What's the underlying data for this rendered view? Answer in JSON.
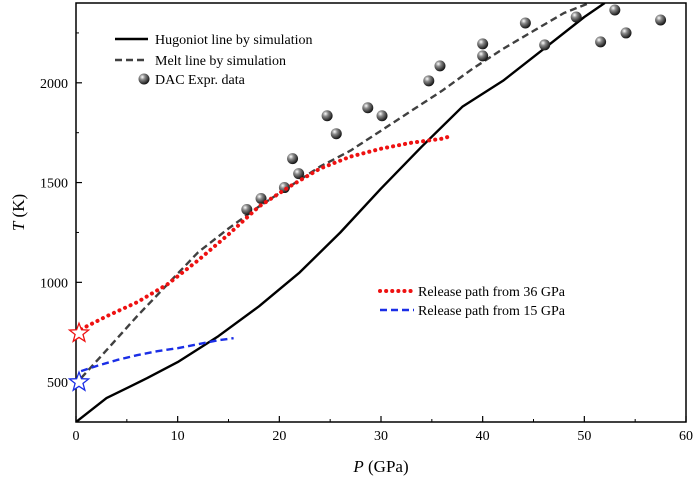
{
  "chart_data": {
    "type": "line",
    "title": "",
    "xlabel": {
      "var": "P",
      "unit": " (GPa)"
    },
    "ylabel": {
      "var": "T",
      "unit": " (K)"
    },
    "xlim": [
      0,
      60
    ],
    "ylim": [
      300,
      2400
    ],
    "xticks": [
      0,
      10,
      20,
      30,
      40,
      50,
      60
    ],
    "yticks": [
      500,
      1000,
      1500,
      2000
    ],
    "grid": false,
    "legend_top": {
      "position": "top-left",
      "entries": [
        {
          "label": "Hugoniot line by simulation",
          "series": "hugoniot"
        },
        {
          "label": "Melt line by simulation",
          "series": "melt"
        },
        {
          "label": "DAC Expr. data",
          "series": "dac"
        }
      ]
    },
    "legend_bottom": {
      "position": "center-right",
      "entries": [
        {
          "label": "Release path from 36 GPa",
          "series": "release36"
        },
        {
          "label": "Release path from 15 GPa",
          "series": "release15"
        }
      ]
    },
    "series": [
      {
        "id": "hugoniot",
        "name": "Hugoniot line by simulation",
        "kind": "line",
        "style": "solid",
        "color": "#000000",
        "x": [
          0,
          3,
          7,
          10,
          14,
          18,
          22,
          26,
          30,
          34,
          38,
          42,
          46,
          50,
          52
        ],
        "y": [
          300,
          420,
          520,
          600,
          730,
          880,
          1050,
          1250,
          1470,
          1680,
          1880,
          2010,
          2170,
          2330,
          2400
        ]
      },
      {
        "id": "melt",
        "name": "Melt line by simulation",
        "kind": "line",
        "style": "dashed",
        "color": "#404040",
        "x": [
          0.5,
          3,
          6,
          9,
          12,
          15,
          18,
          21,
          24,
          27,
          30,
          33,
          36,
          39,
          42,
          45,
          48,
          51
        ],
        "y": [
          520,
          660,
          830,
          990,
          1150,
          1270,
          1380,
          1480,
          1580,
          1660,
          1760,
          1860,
          1960,
          2070,
          2170,
          2260,
          2350,
          2410
        ]
      },
      {
        "id": "dac",
        "name": "DAC Expr. data",
        "kind": "scatter",
        "color": "#000000",
        "x": [
          16.8,
          18.2,
          20.5,
          21.3,
          21.9,
          24.7,
          25.6,
          28.7,
          30.1,
          34.7,
          35.8,
          40.0,
          40.0,
          44.2,
          46.1,
          49.2,
          51.6,
          53.0,
          54.1,
          57.5
        ],
        "y": [
          1365,
          1420,
          1475,
          1620,
          1545,
          1835,
          1745,
          1875,
          1835,
          2010,
          2085,
          2195,
          2135,
          2300,
          2190,
          2330,
          2205,
          2365,
          2250,
          2315
        ]
      },
      {
        "id": "release36",
        "name": "Release path from 36 GPa",
        "kind": "line",
        "style": "dotted",
        "color": "#ee1111",
        "x": [
          0.5,
          3,
          6,
          9,
          12,
          15,
          18,
          21,
          24,
          27,
          30,
          33,
          36,
          37
        ],
        "y": [
          765,
          830,
          900,
          990,
          1110,
          1240,
          1380,
          1480,
          1570,
          1630,
          1670,
          1700,
          1720,
          1735
        ]
      },
      {
        "id": "release15",
        "name": "Release path from 15 GPa",
        "kind": "line",
        "style": "dashed",
        "color": "#1a2ee6",
        "x": [
          0.5,
          2,
          4,
          6,
          8,
          10,
          12,
          14,
          15.5
        ],
        "y": [
          555,
          580,
          610,
          635,
          655,
          670,
          690,
          710,
          720
        ]
      },
      {
        "id": "star36",
        "name": "",
        "kind": "star",
        "color": "#ee1111",
        "x": [
          0.3
        ],
        "y": [
          745
        ]
      },
      {
        "id": "star15",
        "name": "",
        "kind": "star",
        "color": "#1a2ee6",
        "x": [
          0.3
        ],
        "y": [
          500
        ]
      }
    ]
  }
}
